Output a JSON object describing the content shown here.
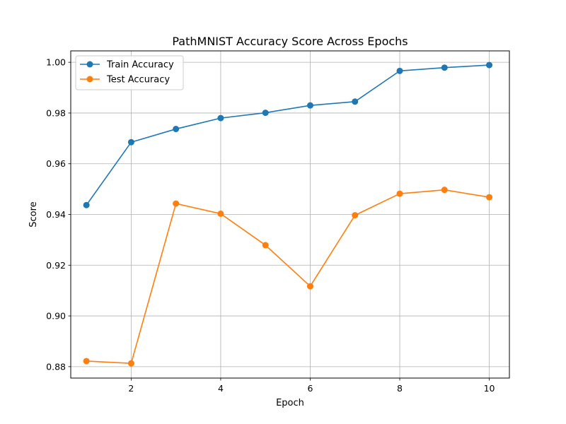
{
  "chart_data": {
    "type": "line",
    "title": "PathMNIST Accuracy Score Across Epochs",
    "xlabel": "Epoch",
    "ylabel": "Score",
    "x": [
      1,
      2,
      3,
      4,
      5,
      6,
      7,
      8,
      9,
      10
    ],
    "xlim": [
      0.65,
      10.45
    ],
    "ylim": [
      0.8755,
      1.0045
    ],
    "x_ticks": [
      2,
      4,
      6,
      8,
      10
    ],
    "x_tick_labels": [
      "2",
      "4",
      "6",
      "8",
      "10"
    ],
    "y_ticks": [
      0.88,
      0.9,
      0.92,
      0.94,
      0.96,
      0.98,
      1.0
    ],
    "y_tick_labels": [
      "0.88",
      "0.90",
      "0.92",
      "0.94",
      "0.96",
      "0.98",
      "1.00"
    ],
    "grid": true,
    "legend_position": "top-left",
    "series": [
      {
        "name": "Train Accuracy",
        "color": "#1f77b4",
        "values": [
          0.9437,
          0.9685,
          0.9737,
          0.978,
          0.9801,
          0.983,
          0.9845,
          0.9966,
          0.9979,
          0.9989
        ]
      },
      {
        "name": "Test Accuracy",
        "color": "#ff7f0e",
        "values": [
          0.8822,
          0.8813,
          0.9443,
          0.9403,
          0.9279,
          0.9117,
          0.9397,
          0.9482,
          0.9497,
          0.9468
        ]
      }
    ]
  }
}
